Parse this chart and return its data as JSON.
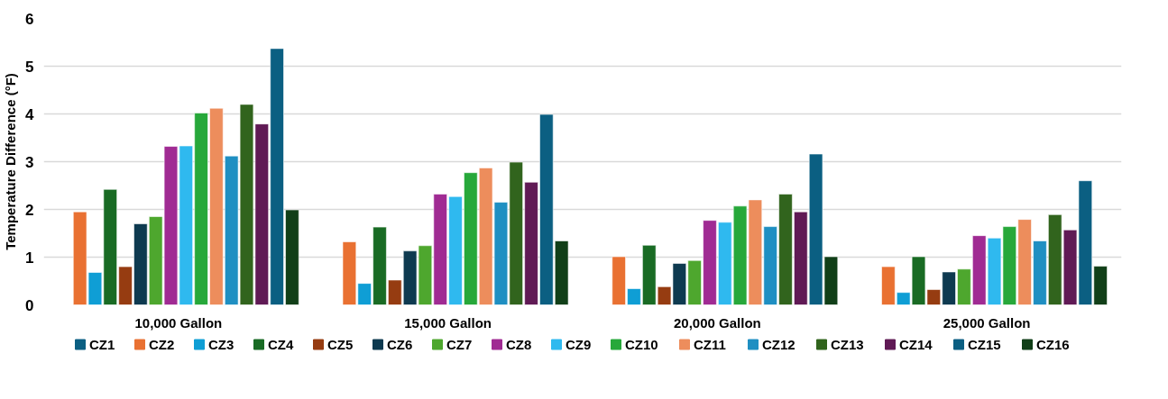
{
  "chart_data": {
    "type": "bar",
    "ylabel": "Temperature Difference (°F)",
    "categories": [
      "10,000 Gallon",
      "15,000 Gallon",
      "20,000 Gallon",
      "25,000 Gallon"
    ],
    "ylim": [
      0,
      6
    ],
    "yticks": [
      0,
      1,
      2,
      3,
      4,
      5,
      6
    ],
    "grid": "y",
    "legend": "bottom",
    "series": [
      {
        "name": "CZ1",
        "color": "#0b5f82",
        "values": [
          null,
          null,
          null,
          null
        ]
      },
      {
        "name": "CZ2",
        "color": "#e97132",
        "values": [
          1.95,
          1.32,
          1.01,
          0.8
        ]
      },
      {
        "name": "CZ3",
        "color": "#0f9ed5",
        "values": [
          0.68,
          0.45,
          0.34,
          0.26
        ]
      },
      {
        "name": "CZ4",
        "color": "#196b24",
        "values": [
          2.42,
          1.63,
          1.25,
          1.01
        ]
      },
      {
        "name": "CZ5",
        "color": "#963c11",
        "values": [
          0.8,
          0.52,
          0.38,
          0.32
        ]
      },
      {
        "name": "CZ6",
        "color": "#0e3a50",
        "values": [
          1.7,
          1.13,
          0.87,
          0.69
        ]
      },
      {
        "name": "CZ7",
        "color": "#4ea72e",
        "values": [
          1.85,
          1.24,
          0.93,
          0.75
        ]
      },
      {
        "name": "CZ8",
        "color": "#a02b93",
        "values": [
          3.32,
          2.32,
          1.77,
          1.45
        ]
      },
      {
        "name": "CZ9",
        "color": "#2fb9ef",
        "values": [
          3.33,
          2.27,
          1.73,
          1.4
        ]
      },
      {
        "name": "CZ10",
        "color": "#27a83a",
        "values": [
          4.02,
          2.77,
          2.07,
          1.64
        ]
      },
      {
        "name": "CZ11",
        "color": "#ed8d5c",
        "values": [
          4.12,
          2.87,
          2.2,
          1.79
        ]
      },
      {
        "name": "CZ12",
        "color": "#1f8fc2",
        "values": [
          3.12,
          2.15,
          1.64,
          1.34
        ]
      },
      {
        "name": "CZ13",
        "color": "#31641d",
        "values": [
          4.2,
          2.99,
          2.32,
          1.89
        ]
      },
      {
        "name": "CZ14",
        "color": "#601a55",
        "values": [
          3.79,
          2.57,
          1.95,
          1.57
        ]
      },
      {
        "name": "CZ15",
        "color": "#0b5f82",
        "values": [
          5.37,
          3.99,
          3.16,
          2.6
        ]
      },
      {
        "name": "CZ16",
        "color": "#113f18",
        "values": [
          1.99,
          1.34,
          1.01,
          0.81
        ]
      }
    ]
  }
}
